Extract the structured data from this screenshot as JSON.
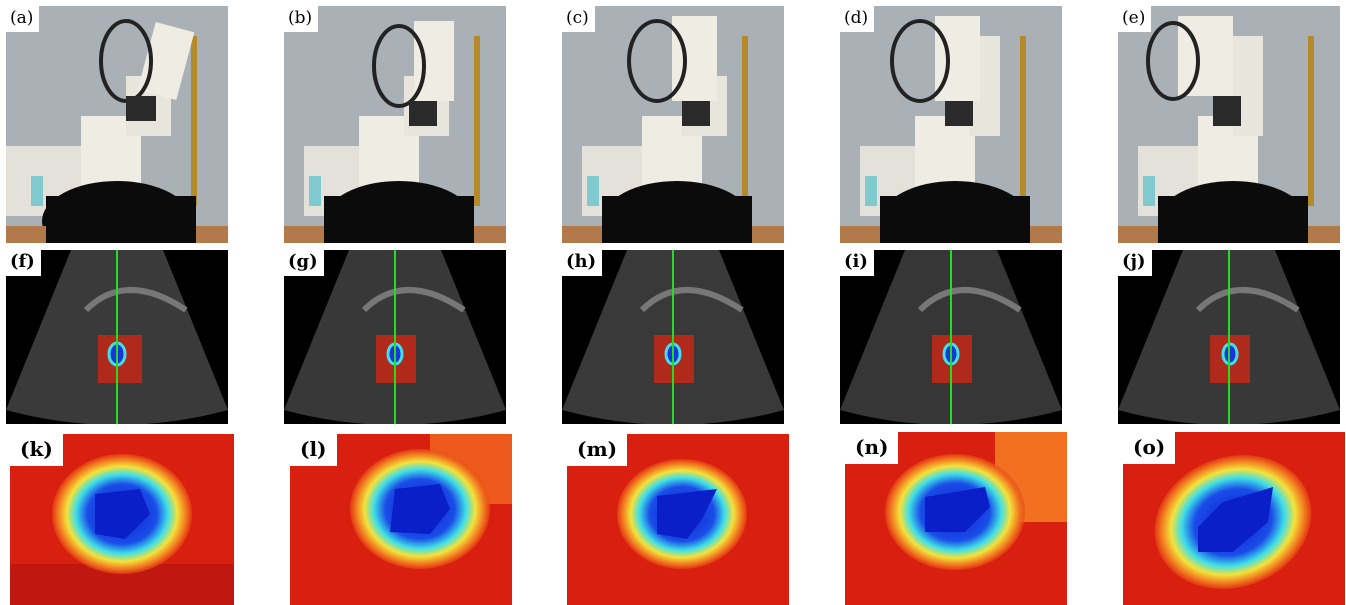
{
  "figure": {
    "row1": [
      {
        "label": "(a)"
      },
      {
        "label": "(b)"
      },
      {
        "label": "(c)"
      },
      {
        "label": "(d)"
      },
      {
        "label": "(e)"
      }
    ],
    "row2": [
      {
        "label": "(f)"
      },
      {
        "label": "(g)"
      },
      {
        "label": "(h)"
      },
      {
        "label": "(i)"
      },
      {
        "label": "(j)"
      }
    ],
    "row3": [
      {
        "label": "(k)"
      },
      {
        "label": "(l)"
      },
      {
        "label": "(m)"
      },
      {
        "label": "(n)"
      },
      {
        "label": "(o)"
      }
    ]
  },
  "colors": {
    "wall": "#a9b0b6",
    "robot": "#efece4",
    "heatmap_bg": "#d81f10",
    "heatmap_blob_core": "#0a1fc8",
    "heatmap_blob_ring": "#3fe0e8",
    "ultrasound_line": "#22dd22"
  }
}
